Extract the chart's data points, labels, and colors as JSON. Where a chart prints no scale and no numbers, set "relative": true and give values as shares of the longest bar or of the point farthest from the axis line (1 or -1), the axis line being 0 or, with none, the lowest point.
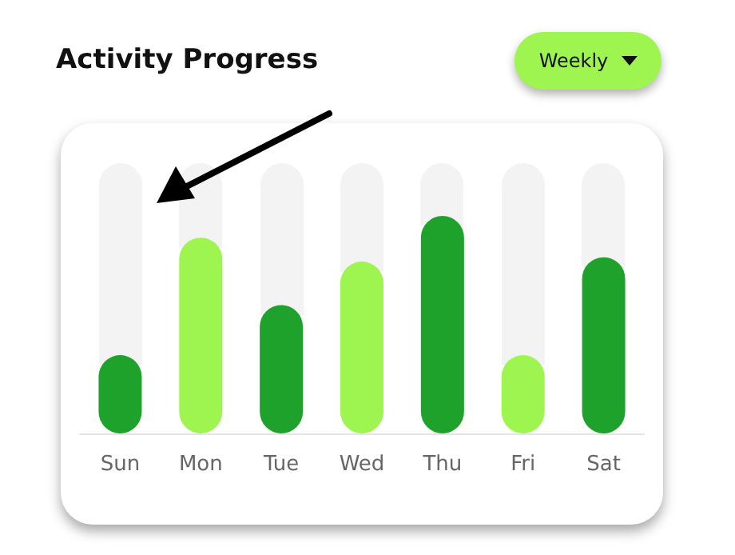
{
  "chart_data": {
    "type": "bar",
    "title": "Activity Progress",
    "relative": true,
    "categories": [
      "Sun",
      "Mon",
      "Tue",
      "Wed",
      "Thu",
      "Fri",
      "Sat"
    ],
    "values": [
      0.36,
      0.9,
      0.59,
      0.79,
      1,
      0.36,
      0.81
    ],
    "colors": [
      "#1fa22c",
      "#9ef550",
      "#1fa22c",
      "#9ef550",
      "#1fa22c",
      "#9ef550",
      "#1fa22c"
    ],
    "annotations": [
      "Weekly"
    ],
    "grid": false
  }
}
